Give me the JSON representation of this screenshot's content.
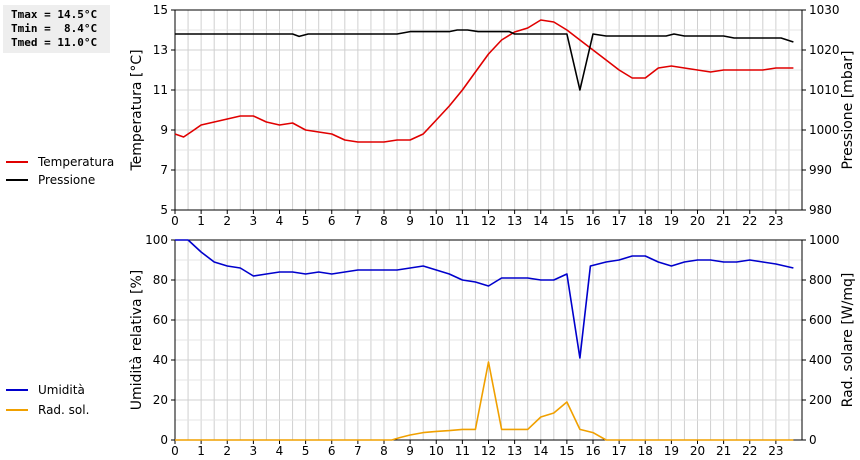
{
  "stats": {
    "tmax": "Tmax = 14.5°C",
    "tmin": "Tmin =  8.4°C",
    "tmed": "Tmed = 11.0°C"
  },
  "chart_data": [
    {
      "type": "line",
      "xlim": [
        0,
        24
      ],
      "x_ticks": [
        0,
        1,
        2,
        3,
        4,
        5,
        6,
        7,
        8,
        9,
        10,
        11,
        12,
        13,
        14,
        15,
        16,
        17,
        18,
        19,
        20,
        21,
        22,
        23
      ],
      "ylabel_left": "Temperatura [°C]",
      "ylim_left": [
        5,
        15
      ],
      "yticks_left": [
        5,
        7,
        9,
        11,
        13,
        15
      ],
      "ylabel_right": "Pressione [mbar]",
      "ylim_right": [
        980,
        1030
      ],
      "yticks_right": [
        980,
        990,
        1000,
        1010,
        1020,
        1030
      ],
      "grid": true,
      "legend_position": "left",
      "series": [
        {
          "name": "Temperatura",
          "axis": "left",
          "color": "#e00000",
          "points": [
            [
              0,
              8.8
            ],
            [
              0.33,
              8.65
            ],
            [
              0.67,
              8.95
            ],
            [
              1,
              9.25
            ],
            [
              1.5,
              9.4
            ],
            [
              2,
              9.55
            ],
            [
              2.5,
              9.7
            ],
            [
              3,
              9.7
            ],
            [
              3.5,
              9.4
            ],
            [
              4,
              9.25
            ],
            [
              4.5,
              9.35
            ],
            [
              5,
              9.0
            ],
            [
              5.5,
              8.9
            ],
            [
              6,
              8.8
            ],
            [
              6.5,
              8.5
            ],
            [
              7,
              8.4
            ],
            [
              7.5,
              8.4
            ],
            [
              8,
              8.4
            ],
            [
              8.5,
              8.5
            ],
            [
              9,
              8.5
            ],
            [
              9.5,
              8.8
            ],
            [
              10,
              9.5
            ],
            [
              10.5,
              10.2
            ],
            [
              11,
              11.0
            ],
            [
              11.5,
              11.9
            ],
            [
              12,
              12.8
            ],
            [
              12.5,
              13.5
            ],
            [
              13,
              13.9
            ],
            [
              13.5,
              14.1
            ],
            [
              14,
              14.5
            ],
            [
              14.5,
              14.4
            ],
            [
              15,
              14.0
            ],
            [
              15.5,
              13.5
            ],
            [
              16,
              13.0
            ],
            [
              16.5,
              12.5
            ],
            [
              17,
              12.0
            ],
            [
              17.5,
              11.6
            ],
            [
              18,
              11.6
            ],
            [
              18.5,
              12.1
            ],
            [
              19,
              12.2
            ],
            [
              19.5,
              12.1
            ],
            [
              20,
              12.0
            ],
            [
              20.5,
              11.9
            ],
            [
              21,
              12.0
            ],
            [
              21.5,
              12.0
            ],
            [
              22,
              12.0
            ],
            [
              22.5,
              12.0
            ],
            [
              23,
              12.1
            ],
            [
              23.67,
              12.1
            ]
          ]
        },
        {
          "name": "Pressione",
          "axis": "right",
          "color": "#000000",
          "points": [
            [
              0,
              1024
            ],
            [
              4.5,
              1024
            ],
            [
              4.75,
              1023.4
            ],
            [
              5.1,
              1024
            ],
            [
              8.5,
              1024
            ],
            [
              9,
              1024.6
            ],
            [
              10.5,
              1024.6
            ],
            [
              10.8,
              1025
            ],
            [
              11.2,
              1025
            ],
            [
              11.6,
              1024.6
            ],
            [
              12.8,
              1024.6
            ],
            [
              13,
              1024
            ],
            [
              15,
              1024
            ],
            [
              15.5,
              1010
            ],
            [
              16,
              1024
            ],
            [
              16.5,
              1023.5
            ],
            [
              18.8,
              1023.5
            ],
            [
              19.1,
              1024
            ],
            [
              19.5,
              1023.5
            ],
            [
              21,
              1023.5
            ],
            [
              21.4,
              1023
            ],
            [
              23.2,
              1023
            ],
            [
              23.67,
              1022
            ]
          ]
        }
      ]
    },
    {
      "type": "line",
      "xlim": [
        0,
        24
      ],
      "x_ticks": [
        0,
        1,
        2,
        3,
        4,
        5,
        6,
        7,
        8,
        9,
        10,
        11,
        12,
        13,
        14,
        15,
        16,
        17,
        18,
        19,
        20,
        21,
        22,
        23
      ],
      "ylabel_left": "Umidità relativa [%]",
      "ylim_left": [
        0,
        100
      ],
      "yticks_left": [
        0,
        20,
        40,
        60,
        80,
        100
      ],
      "ylabel_right": "Rad. solare [W/mq]",
      "ylim_right": [
        0,
        1000
      ],
      "yticks_right": [
        0,
        200,
        400,
        600,
        800,
        1000
      ],
      "grid": true,
      "legend_position": "left",
      "series": [
        {
          "name": "Umidità",
          "axis": "left",
          "color": "#0000cc",
          "points": [
            [
              0,
              100
            ],
            [
              0.5,
              100
            ],
            [
              1,
              94
            ],
            [
              1.5,
              89
            ],
            [
              2,
              87
            ],
            [
              2.5,
              86
            ],
            [
              3,
              82
            ],
            [
              3.5,
              83
            ],
            [
              4,
              84
            ],
            [
              4.5,
              84
            ],
            [
              5,
              83
            ],
            [
              5.5,
              84
            ],
            [
              6,
              83
            ],
            [
              6.5,
              84
            ],
            [
              7,
              85
            ],
            [
              8,
              85
            ],
            [
              8.5,
              85
            ],
            [
              9,
              86
            ],
            [
              9.5,
              87
            ],
            [
              10,
              85
            ],
            [
              10.5,
              83
            ],
            [
              11,
              80
            ],
            [
              11.5,
              79
            ],
            [
              12,
              77
            ],
            [
              12.5,
              81
            ],
            [
              13,
              81
            ],
            [
              13.5,
              81
            ],
            [
              14,
              80
            ],
            [
              14.5,
              80
            ],
            [
              15,
              83
            ],
            [
              15.5,
              41
            ],
            [
              15.9,
              87
            ],
            [
              16.5,
              89
            ],
            [
              17,
              90
            ],
            [
              17.5,
              92
            ],
            [
              18,
              92
            ],
            [
              18.5,
              89
            ],
            [
              19,
              87
            ],
            [
              19.5,
              89
            ],
            [
              20,
              90
            ],
            [
              20.5,
              90
            ],
            [
              21,
              89
            ],
            [
              21.5,
              89
            ],
            [
              22,
              90
            ],
            [
              22.5,
              89
            ],
            [
              23,
              88
            ],
            [
              23.67,
              86
            ]
          ]
        },
        {
          "name": "Rad. sol.",
          "axis": "right",
          "color": "#f0a000",
          "points": [
            [
              0,
              0
            ],
            [
              8.3,
              0
            ],
            [
              8.6,
              12
            ],
            [
              9,
              25
            ],
            [
              9.5,
              37
            ],
            [
              10,
              43
            ],
            [
              10.5,
              47
            ],
            [
              11,
              53
            ],
            [
              11.5,
              53
            ],
            [
              12,
              390
            ],
            [
              12.5,
              53
            ],
            [
              13.5,
              53
            ],
            [
              14,
              115
            ],
            [
              14.5,
              135
            ],
            [
              15,
              190
            ],
            [
              15.5,
              53
            ],
            [
              16,
              37
            ],
            [
              16.5,
              0
            ],
            [
              23.67,
              0
            ]
          ]
        }
      ]
    }
  ]
}
